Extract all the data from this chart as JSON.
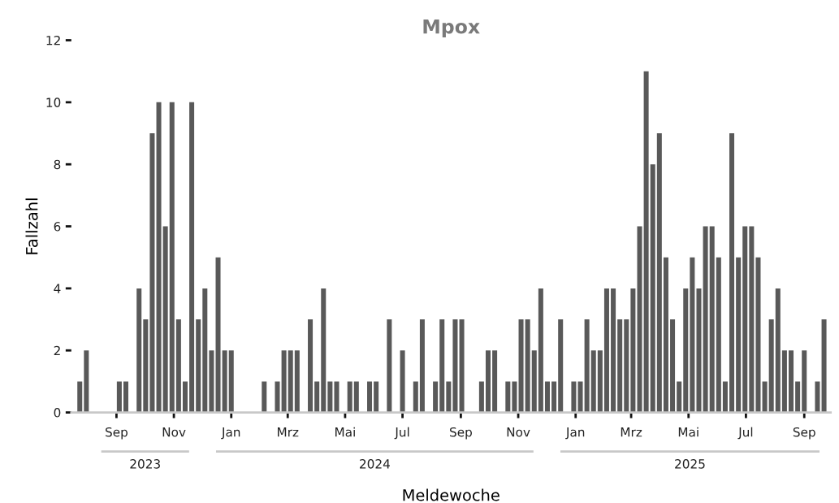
{
  "chart_data": {
    "type": "bar",
    "title": "Mpox",
    "xlabel": "Meldewoche",
    "ylabel": "Fallzahl",
    "x": [
      "2023-07-24",
      "2023-07-31",
      "2023-08-07",
      "2023-08-14",
      "2023-08-21",
      "2023-08-28",
      "2023-09-04",
      "2023-09-11",
      "2023-09-18",
      "2023-09-25",
      "2023-10-02",
      "2023-10-09",
      "2023-10-16",
      "2023-10-23",
      "2023-10-30",
      "2023-11-06",
      "2023-11-13",
      "2023-11-20",
      "2023-11-27",
      "2023-12-04",
      "2023-12-11",
      "2023-12-18",
      "2023-12-25",
      "2024-01-01",
      "2024-01-08",
      "2024-01-15",
      "2024-01-22",
      "2024-01-29",
      "2024-02-05",
      "2024-02-12",
      "2024-02-19",
      "2024-02-26",
      "2024-03-04",
      "2024-03-11",
      "2024-03-18",
      "2024-03-25",
      "2024-04-01",
      "2024-04-08",
      "2024-04-15",
      "2024-04-22",
      "2024-04-29",
      "2024-05-06",
      "2024-05-13",
      "2024-05-20",
      "2024-05-27",
      "2024-06-03",
      "2024-06-10",
      "2024-06-17",
      "2024-06-24",
      "2024-07-01",
      "2024-07-08",
      "2024-07-15",
      "2024-07-22",
      "2024-07-29",
      "2024-08-05",
      "2024-08-12",
      "2024-08-19",
      "2024-08-26",
      "2024-09-02",
      "2024-09-09",
      "2024-09-16",
      "2024-09-23",
      "2024-09-30",
      "2024-10-07",
      "2024-10-14",
      "2024-10-21",
      "2024-10-28",
      "2024-11-04",
      "2024-11-11",
      "2024-11-18",
      "2024-11-25",
      "2024-12-02",
      "2024-12-09",
      "2024-12-16",
      "2024-12-23",
      "2024-12-30",
      "2025-01-06",
      "2025-01-13",
      "2025-01-20",
      "2025-01-27",
      "2025-02-03",
      "2025-02-10",
      "2025-02-17",
      "2025-02-24",
      "2025-03-03",
      "2025-03-10",
      "2025-03-17",
      "2025-03-24",
      "2025-03-31",
      "2025-04-07",
      "2025-04-14",
      "2025-04-21",
      "2025-04-28",
      "2025-05-05",
      "2025-05-12",
      "2025-05-19",
      "2025-05-26",
      "2025-06-02",
      "2025-06-09",
      "2025-06-16",
      "2025-06-23",
      "2025-06-30",
      "2025-07-07",
      "2025-07-14",
      "2025-07-21",
      "2025-07-28",
      "2025-08-04",
      "2025-08-11",
      "2025-08-18",
      "2025-08-25",
      "2025-09-01",
      "2025-09-08",
      "2025-09-15",
      "2025-09-22"
    ],
    "values": [
      1,
      2,
      0,
      0,
      0,
      0,
      1,
      1,
      0,
      4,
      3,
      9,
      10,
      6,
      10,
      3,
      1,
      10,
      3,
      4,
      2,
      5,
      2,
      2,
      0,
      0,
      0,
      0,
      1,
      0,
      1,
      2,
      2,
      2,
      0,
      3,
      1,
      4,
      1,
      1,
      0,
      1,
      1,
      0,
      1,
      1,
      0,
      3,
      0,
      2,
      0,
      1,
      3,
      0,
      1,
      3,
      1,
      3,
      3,
      0,
      0,
      1,
      2,
      2,
      0,
      1,
      1,
      3,
      3,
      2,
      4,
      1,
      1,
      3,
      0,
      1,
      1,
      3,
      2,
      2,
      4,
      4,
      3,
      3,
      4,
      6,
      11,
      8,
      9,
      5,
      3,
      1,
      4,
      5,
      4,
      6,
      6,
      5,
      1,
      9,
      5,
      6,
      6,
      5,
      1,
      3,
      4,
      2,
      2,
      1,
      2,
      0,
      1,
      3
    ],
    "color": "#595959",
    "xlim": [
      "2023-07-15",
      "2025-09-29"
    ],
    "xticks": [
      {
        "value": "2023-09-01",
        "label": "Sep"
      },
      {
        "value": "2023-11-01",
        "label": "Nov"
      },
      {
        "value": "2024-01-01",
        "label": "Jan"
      },
      {
        "value": "2024-03-01",
        "label": "Mrz"
      },
      {
        "value": "2024-05-01",
        "label": "Mai"
      },
      {
        "value": "2024-07-01",
        "label": "Jul"
      },
      {
        "value": "2024-09-01",
        "label": "Sep"
      },
      {
        "value": "2024-11-01",
        "label": "Nov"
      },
      {
        "value": "2025-01-01",
        "label": "Jan"
      },
      {
        "value": "2025-03-01",
        "label": "Mrz"
      },
      {
        "value": "2025-05-01",
        "label": "Mai"
      },
      {
        "value": "2025-07-01",
        "label": "Jul"
      },
      {
        "value": "2025-09-01",
        "label": "Sep"
      }
    ],
    "ylim": [
      0,
      12
    ],
    "yticks": [
      0,
      2,
      4,
      6,
      8,
      10,
      12
    ],
    "annotations": [
      "2023",
      "2024",
      "2025"
    ],
    "grid": false,
    "legend": false
  }
}
